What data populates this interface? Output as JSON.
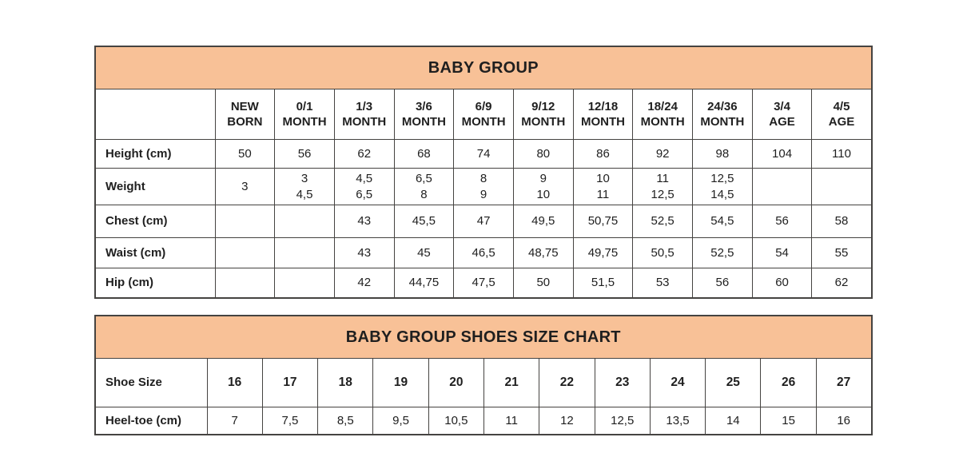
{
  "colors": {
    "banner_bg": "#f8c197",
    "border": "#454341",
    "text": "#1f1f1f"
  },
  "size_table": {
    "title": "BABY GROUP",
    "corner_cell": "",
    "columns": [
      "NEW\nBORN",
      "0/1\nMONTH",
      "1/3\nMONTH",
      "3/6\nMONTH",
      "6/9\nMONTH",
      "9/12\nMONTH",
      "12/18\nMONTH",
      "18/24\nMONTH",
      "24/36\nMONTH",
      "3/4\nAGE",
      "4/5\nAGE"
    ],
    "rows": [
      {
        "label": "Height (cm)",
        "values": [
          "50",
          "56",
          "62",
          "68",
          "74",
          "80",
          "86",
          "92",
          "98",
          "104",
          "110"
        ]
      },
      {
        "label": "Weight",
        "values": [
          "3",
          "3\n4,5",
          "4,5\n6,5",
          "6,5\n8",
          "8\n9",
          "9\n10",
          "10\n11",
          "11\n12,5",
          "12,5\n14,5",
          "",
          ""
        ]
      },
      {
        "label": "Chest (cm)",
        "values": [
          "",
          "",
          "43",
          "45,5",
          "47",
          "49,5",
          "50,75",
          "52,5",
          "54,5",
          "56",
          "58"
        ]
      },
      {
        "label": "Waist (cm)",
        "values": [
          "",
          "",
          "43",
          "45",
          "46,5",
          "48,75",
          "49,75",
          "50,5",
          "52,5",
          "54",
          "55"
        ]
      },
      {
        "label": "Hip (cm)",
        "values": [
          "",
          "",
          "42",
          "44,75",
          "47,5",
          "50",
          "51,5",
          "53",
          "56",
          "60",
          "62"
        ]
      }
    ]
  },
  "shoe_table": {
    "title": "BABY GROUP SHOES SIZE CHART",
    "rows": [
      {
        "label": "Shoe Size",
        "bold": true,
        "values": [
          "16",
          "17",
          "18",
          "19",
          "20",
          "21",
          "22",
          "23",
          "24",
          "25",
          "26",
          "27"
        ]
      },
      {
        "label": "Heel-toe (cm)",
        "bold": false,
        "values": [
          "7",
          "7,5",
          "8,5",
          "9,5",
          "10,5",
          "11",
          "12",
          "12,5",
          "13,5",
          "14",
          "15",
          "16"
        ]
      }
    ]
  }
}
